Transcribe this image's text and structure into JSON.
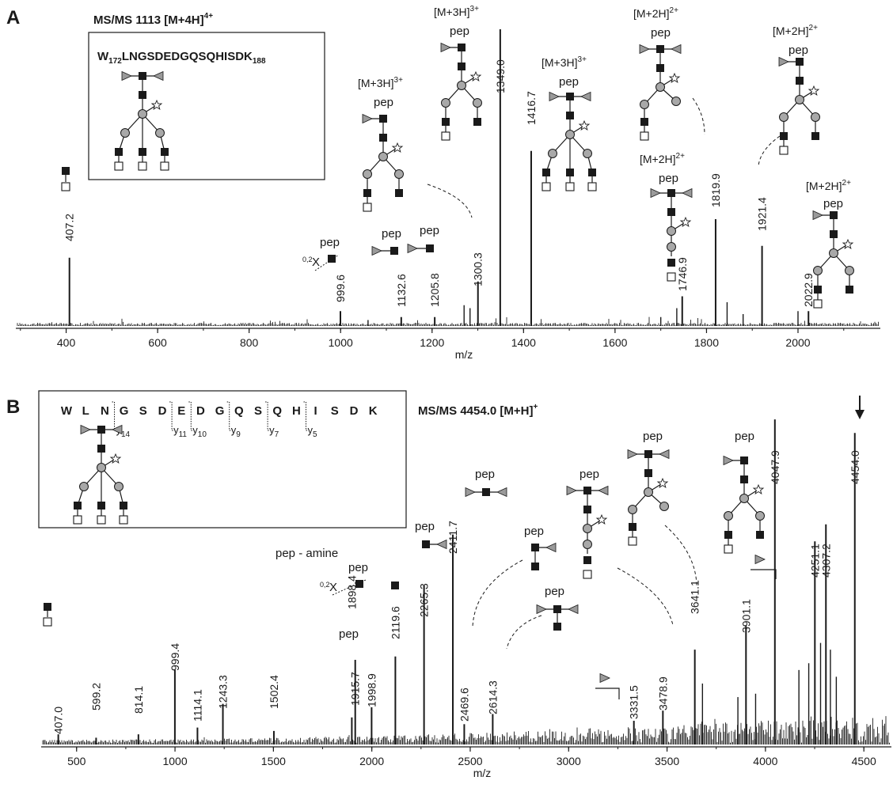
{
  "panels": [
    {
      "letter": "A",
      "title_main": "MS/MS 1113 [M+4H]",
      "title_sup": "4+",
      "inset": {
        "pre": "W",
        "sub1": "172",
        "mid": "LNGSDEDGQSQHISDK",
        "sub2": "188"
      },
      "chart_data": {
        "type": "bar",
        "xlabel": "m/z",
        "ylabel": "",
        "xlim": [
          290,
          2180
        ],
        "ylim": [
          0,
          100
        ],
        "xticks": [
          400,
          600,
          800,
          1000,
          1200,
          1400,
          1600,
          1800,
          2000
        ],
        "peaks": [
          {
            "x": 407.2,
            "y": 23,
            "label": "407.2"
          },
          {
            "x": 999.6,
            "y": 5,
            "label": "999.6"
          },
          {
            "x": 1132.6,
            "y": 3,
            "label": "1132.6"
          },
          {
            "x": 1205.8,
            "y": 3,
            "label": "1205.8"
          },
          {
            "x": 1300.3,
            "y": 15,
            "label": "1300.3"
          },
          {
            "x": 1349.0,
            "y": 100,
            "label": "1349.0"
          },
          {
            "x": 1416.7,
            "y": 59,
            "label": "1416.7"
          },
          {
            "x": 1746.9,
            "y": 10,
            "label": "1746.9"
          },
          {
            "x": 1819.9,
            "y": 36,
            "label": "1819.9"
          },
          {
            "x": 1921.4,
            "y": 27,
            "label": "1921.4"
          },
          {
            "x": 2022.9,
            "y": 5,
            "label": "2022.9"
          },
          {
            "x": 1270,
            "y": 7,
            "label": ""
          },
          {
            "x": 1283,
            "y": 6,
            "label": ""
          },
          {
            "x": 1700,
            "y": 3,
            "label": ""
          },
          {
            "x": 1735,
            "y": 6,
            "label": ""
          },
          {
            "x": 1845,
            "y": 8,
            "label": ""
          },
          {
            "x": 1880,
            "y": 4,
            "label": ""
          },
          {
            "x": 2000,
            "y": 5,
            "label": ""
          },
          {
            "x": 1060,
            "y": 2,
            "label": ""
          }
        ],
        "ion_labels": [
          {
            "main": "[M+3H]",
            "sup": "3+"
          },
          {
            "main": "[M+3H]",
            "sup": "3+"
          },
          {
            "main": "[M+3H]",
            "sup": "3+"
          },
          {
            "main": "[M+2H]",
            "sup": "2+"
          },
          {
            "main": "[M+2H]",
            "sup": "2+"
          },
          {
            "main": "[M+2H]",
            "sup": "2+"
          },
          {
            "main": "[M+2H]",
            "sup": "2+"
          }
        ]
      }
    },
    {
      "letter": "B",
      "title_main": "MS/MS 4454.0 [M+H]",
      "title_sup": "+",
      "sequence": [
        "W",
        "L",
        "N",
        "G",
        "S",
        "D",
        "E",
        "D",
        "G",
        "Q",
        "S",
        "Q",
        "H",
        "I",
        "S",
        "D",
        "K"
      ],
      "frag_labels": [
        {
          "base": "y",
          "sub": "14"
        },
        {
          "base": "y",
          "sub": "11"
        },
        {
          "base": "y",
          "sub": "10"
        },
        {
          "base": "y",
          "sub": "9"
        },
        {
          "base": "y",
          "sub": "7"
        },
        {
          "base": "y",
          "sub": "5"
        }
      ],
      "chart_data": {
        "type": "bar",
        "xlabel": "m/z",
        "ylabel": "",
        "xlim": [
          320,
          4640
        ],
        "ylim": [
          0,
          100
        ],
        "xticks": [
          500,
          1000,
          1500,
          2000,
          2500,
          3000,
          3500,
          4000,
          4500
        ],
        "peaks": [
          {
            "x": 407.0,
            "y": 3,
            "label": "407.0"
          },
          {
            "x": 599.2,
            "y": 2,
            "label": "599.2"
          },
          {
            "x": 814.1,
            "y": 3,
            "label": "814.1"
          },
          {
            "x": 999.4,
            "y": 22,
            "label": "999.4"
          },
          {
            "x": 1114.1,
            "y": 5,
            "label": "1114.1"
          },
          {
            "x": 1243.3,
            "y": 12,
            "label": "1243.3"
          },
          {
            "x": 1502.4,
            "y": 4,
            "label": "1502.4"
          },
          {
            "x": 1898.4,
            "y": 8,
            "label": "1898.4"
          },
          {
            "x": 1915.7,
            "y": 25,
            "label": "1915.7"
          },
          {
            "x": 1998.9,
            "y": 11,
            "label": "1998.9"
          },
          {
            "x": 2119.6,
            "y": 26,
            "label": "2119.6"
          },
          {
            "x": 2265.3,
            "y": 47,
            "label": "2265.3"
          },
          {
            "x": 2411.7,
            "y": 62,
            "label": "2411.7"
          },
          {
            "x": 2469.6,
            "y": 6,
            "label": "2469.6"
          },
          {
            "x": 2614.3,
            "y": 9,
            "label": "2614.3"
          },
          {
            "x": 3331.5,
            "y": 7,
            "label": "3331.5"
          },
          {
            "x": 3478.9,
            "y": 10,
            "label": "3478.9"
          },
          {
            "x": 3641.1,
            "y": 28,
            "label": "3641.1"
          },
          {
            "x": 3901.1,
            "y": 35,
            "label": "3901.1"
          },
          {
            "x": 4047.9,
            "y": 96,
            "label": "4047.9"
          },
          {
            "x": 4251.1,
            "y": 60,
            "label": "4251.1"
          },
          {
            "x": 4307.2,
            "y": 65,
            "label": "4307.2"
          },
          {
            "x": 4454.0,
            "y": 92,
            "label": "4454.0"
          },
          {
            "x": 3680,
            "y": 18,
            "label": ""
          },
          {
            "x": 3860,
            "y": 14,
            "label": ""
          },
          {
            "x": 3950,
            "y": 15,
            "label": ""
          },
          {
            "x": 4170,
            "y": 22,
            "label": ""
          },
          {
            "x": 4220,
            "y": 24,
            "label": ""
          },
          {
            "x": 4280,
            "y": 30,
            "label": ""
          },
          {
            "x": 4330,
            "y": 28,
            "label": ""
          },
          {
            "x": 4360,
            "y": 20,
            "label": ""
          }
        ],
        "annotations": [
          "pep - amine",
          "0,2",
          "X"
        ]
      }
    }
  ],
  "glycan_text": "pep",
  "colors": {
    "hexnac": "#1a1a1a",
    "hexose": "#9a9a9a",
    "fucose": "#8a8a8a",
    "ink": "#1a1a1a",
    "noise": "#222222"
  },
  "icons": [
    "hexnac-square-icon",
    "hexose-circle-icon",
    "fucose-triangle-icon",
    "open-square-icon",
    "star-icon",
    "down-arrow-icon"
  ]
}
